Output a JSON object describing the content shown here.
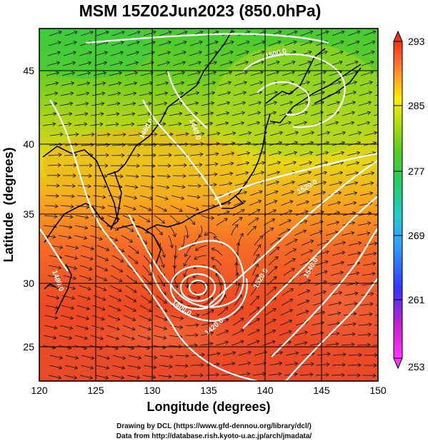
{
  "title": "MSM 15Z02Jun2023 (850.0hPa)",
  "axes": {
    "xlabel": "Longitude (degrees)",
    "ylabel": "Latitude  (degrees)",
    "xticks": [
      "120",
      "125",
      "130",
      "135",
      "140",
      "145",
      "150"
    ],
    "yticks": [
      "25",
      "30",
      "35",
      "40",
      "45"
    ],
    "xrange": [
      120,
      150
    ],
    "yrange": [
      22.4,
      47.6
    ]
  },
  "colorbar": {
    "labels": [
      "293",
      "285",
      "277",
      "269",
      "261",
      "253"
    ],
    "range": [
      253,
      293
    ],
    "stops": [
      "#ff33ff",
      "#cc22cc",
      "#3333ff",
      "#3399ff",
      "#22cccc",
      "#22cc66",
      "#55cc22",
      "#bbdd11",
      "#ffee00",
      "#ffaa22",
      "#ff6633",
      "#ee3311"
    ]
  },
  "contours": {
    "labels": [
      "1500.0",
      "1520.0",
      "1440.0",
      "1460.0",
      "1480.0",
      "1400.0",
      "1420.0",
      "1520.0",
      "1540.0"
    ]
  },
  "footer": {
    "line1": "Drawing by DCL (https://www.gfd-dennou.org/library/dcl/)",
    "line2": "Data from http://database.rish.kyoto-u.ac.jp/arch/jmadata/"
  }
}
